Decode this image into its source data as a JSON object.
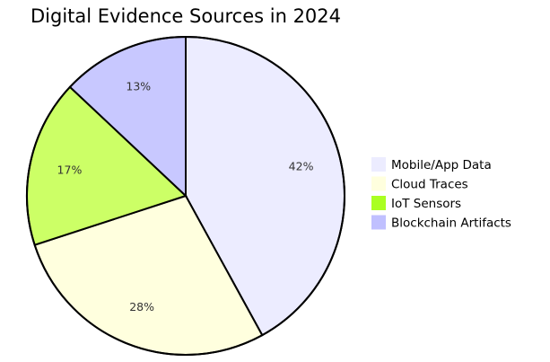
{
  "chart_data": {
    "type": "pie",
    "title": "Digital Evidence Sources in 2024",
    "categories": [
      "Mobile/App Data",
      "Cloud Traces",
      "IoT Sensors",
      "Blockchain Artifacts"
    ],
    "values": [
      42,
      28,
      17,
      13
    ],
    "labels": [
      "42%",
      "28%",
      "17%",
      "13%"
    ],
    "colors": [
      "#ececff",
      "#ffffde",
      "#ccff66",
      "#c8c8ff"
    ],
    "legend_colors": [
      "#ececff",
      "#ffffde",
      "#aaff22",
      "#c0c0ff"
    ],
    "start_angle": "12 o'clock",
    "direction": "clockwise",
    "legend_position": "right"
  }
}
